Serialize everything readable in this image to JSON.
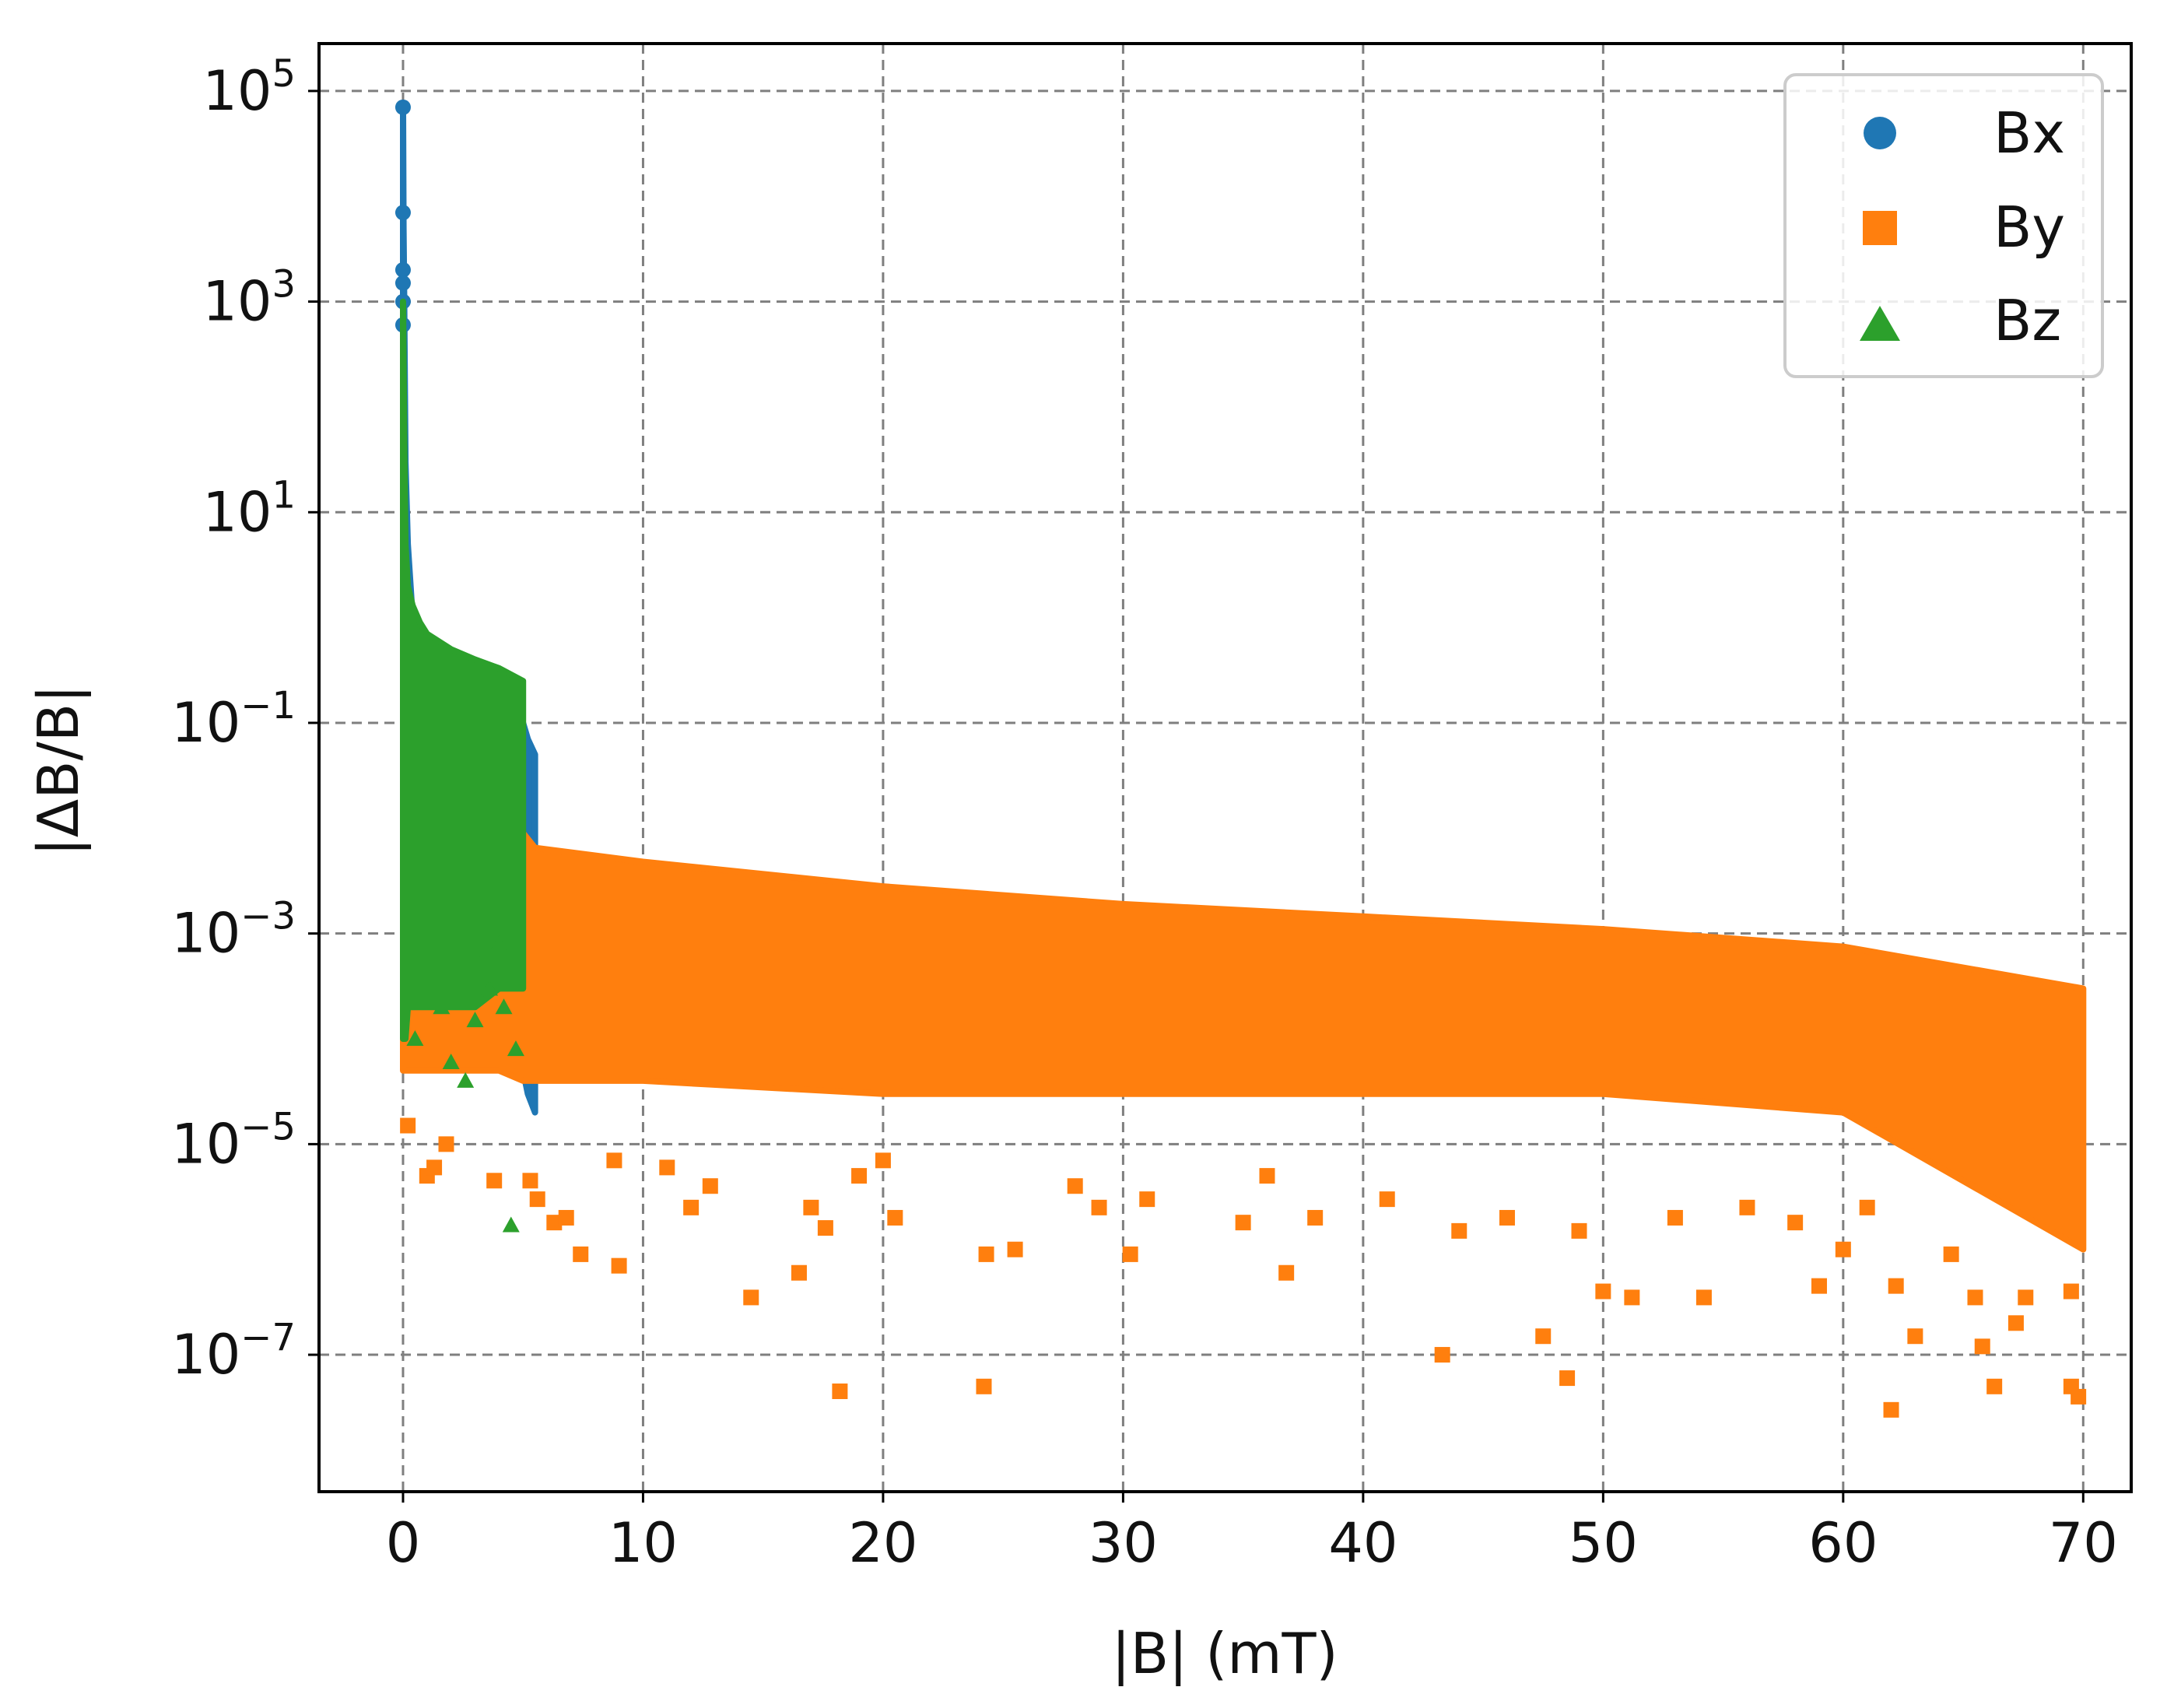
{
  "chart_data": {
    "type": "scatter",
    "title": "",
    "xlabel": "|B| (mT)",
    "ylabel": "|ΔB/B|",
    "xlim": [
      -3.5,
      72
    ],
    "ylim_exponent": [
      -8.3,
      5.45
    ],
    "y_scale": "log",
    "x_ticks": [
      0,
      10,
      20,
      30,
      40,
      50,
      60,
      70
    ],
    "x_tick_labels": [
      "0",
      "10",
      "20",
      "30",
      "40",
      "50",
      "60",
      "70"
    ],
    "y_ticks_exponent": [
      5,
      3,
      1,
      -1,
      -3,
      -5,
      -7
    ],
    "y_tick_labels": [
      {
        "base": "10",
        "exp": "5"
      },
      {
        "base": "10",
        "exp": "3"
      },
      {
        "base": "10",
        "exp": "1"
      },
      {
        "base": "10",
        "exp": "−1"
      },
      {
        "base": "10",
        "exp": "−3"
      },
      {
        "base": "10",
        "exp": "−5"
      },
      {
        "base": "10",
        "exp": "−7"
      }
    ],
    "grid": true,
    "grid_style": "dashed",
    "legend_position": "top-right",
    "series": [
      {
        "name": "Bx",
        "marker": "circle",
        "color": "#1f77b4",
        "envelope": {
          "x": [
            0,
            0.02,
            0.05,
            0.1,
            0.2,
            0.4,
            1,
            2,
            3,
            4,
            5,
            5.2,
            5.5
          ],
          "y_upper": [
            70000,
            5000,
            1000,
            30,
            5,
            1,
            0.5,
            0.3,
            0.2,
            0.15,
            0.1,
            0.07,
            0.05
          ],
          "y_lower": [
            0.0001,
            0.0001,
            0.0001,
            0.0001,
            0.0001,
            0.0001,
            0.0001,
            0.0001,
            0.0001,
            0.0001,
            5e-05,
            3e-05,
            2e-05
          ]
        },
        "points": [
          {
            "x": 0,
            "y": 70000
          },
          {
            "x": 0,
            "y": 7000
          },
          {
            "x": 0,
            "y": 2000
          },
          {
            "x": 0,
            "y": 1500
          },
          {
            "x": 0,
            "y": 1000
          },
          {
            "x": 0,
            "y": 600
          }
        ]
      },
      {
        "name": "By",
        "marker": "square",
        "color": "#ff7f0e",
        "envelope": {
          "x": [
            0,
            1,
            2,
            3,
            4,
            5,
            5.5,
            10,
            20,
            30,
            40,
            50,
            60,
            70
          ],
          "y_upper": [
            0.03,
            0.02,
            0.015,
            0.012,
            0.01,
            0.009,
            0.0065,
            0.0048,
            0.0028,
            0.0019,
            0.00145,
            0.0011,
            0.00075,
            0.0003
          ],
          "y_lower": [
            5e-05,
            5e-05,
            5e-05,
            5e-05,
            5e-05,
            4e-05,
            4e-05,
            4e-05,
            3e-05,
            3e-05,
            3e-05,
            3e-05,
            2e-05,
            1e-06
          ]
        },
        "points": [
          {
            "x": 0.2,
            "y": 1.5e-05
          },
          {
            "x": 1.0,
            "y": 5e-06
          },
          {
            "x": 1.3,
            "y": 6e-06
          },
          {
            "x": 1.8,
            "y": 1e-05
          },
          {
            "x": 3.8,
            "y": 4.5e-06
          },
          {
            "x": 5.3,
            "y": 4.5e-06
          },
          {
            "x": 5.6,
            "y": 3e-06
          },
          {
            "x": 6.3,
            "y": 1.8e-06
          },
          {
            "x": 6.8,
            "y": 2e-06
          },
          {
            "x": 7.4,
            "y": 9e-07
          },
          {
            "x": 8.8,
            "y": 7e-06
          },
          {
            "x": 9.0,
            "y": 7e-07
          },
          {
            "x": 11.0,
            "y": 6e-06
          },
          {
            "x": 12.0,
            "y": 2.5e-06
          },
          {
            "x": 12.8,
            "y": 4e-06
          },
          {
            "x": 14.5,
            "y": 3.5e-07
          },
          {
            "x": 16.5,
            "y": 6e-07
          },
          {
            "x": 17.0,
            "y": 2.5e-06
          },
          {
            "x": 17.6,
            "y": 1.6e-06
          },
          {
            "x": 18.2,
            "y": 4.5e-08
          },
          {
            "x": 19.0,
            "y": 5e-06
          },
          {
            "x": 20.0,
            "y": 7e-06
          },
          {
            "x": 20.5,
            "y": 2e-06
          },
          {
            "x": 24.2,
            "y": 5e-08
          },
          {
            "x": 24.3,
            "y": 9e-07
          },
          {
            "x": 25.5,
            "y": 1e-06
          },
          {
            "x": 28.0,
            "y": 4e-06
          },
          {
            "x": 29.0,
            "y": 2.5e-06
          },
          {
            "x": 30.3,
            "y": 9e-07
          },
          {
            "x": 31.0,
            "y": 3e-06
          },
          {
            "x": 35.0,
            "y": 1.8e-06
          },
          {
            "x": 36.0,
            "y": 5e-06
          },
          {
            "x": 36.8,
            "y": 6e-07
          },
          {
            "x": 38.0,
            "y": 2e-06
          },
          {
            "x": 41.0,
            "y": 3e-06
          },
          {
            "x": 43.3,
            "y": 1e-07
          },
          {
            "x": 44.0,
            "y": 1.5e-06
          },
          {
            "x": 46.0,
            "y": 2e-06
          },
          {
            "x": 47.5,
            "y": 1.5e-07
          },
          {
            "x": 48.5,
            "y": 6e-08
          },
          {
            "x": 49.0,
            "y": 1.5e-06
          },
          {
            "x": 50.0,
            "y": 4e-07
          },
          {
            "x": 51.2,
            "y": 3.5e-07
          },
          {
            "x": 53.0,
            "y": 2e-06
          },
          {
            "x": 54.2,
            "y": 3.5e-07
          },
          {
            "x": 56.0,
            "y": 2.5e-06
          },
          {
            "x": 58.0,
            "y": 1.8e-06
          },
          {
            "x": 59.0,
            "y": 4.5e-07
          },
          {
            "x": 60.0,
            "y": 1e-06
          },
          {
            "x": 61.0,
            "y": 2.5e-06
          },
          {
            "x": 62.0,
            "y": 3e-08
          },
          {
            "x": 62.2,
            "y": 4.5e-07
          },
          {
            "x": 63.0,
            "y": 1.5e-07
          },
          {
            "x": 64.5,
            "y": 9e-07
          },
          {
            "x": 65.5,
            "y": 3.5e-07
          },
          {
            "x": 65.8,
            "y": 1.2e-07
          },
          {
            "x": 66.3,
            "y": 5e-08
          },
          {
            "x": 67.2,
            "y": 2e-07
          },
          {
            "x": 67.6,
            "y": 3.5e-07
          },
          {
            "x": 69.5,
            "y": 5e-08
          },
          {
            "x": 69.8,
            "y": 4e-08
          },
          {
            "x": 69.5,
            "y": 4e-07
          }
        ]
      },
      {
        "name": "Bz",
        "marker": "triangle",
        "color": "#2ca02c",
        "envelope": {
          "x": [
            0,
            0.05,
            0.1,
            0.2,
            0.4,
            0.7,
            1,
            2,
            3,
            4,
            5
          ],
          "y_upper": [
            1000,
            50,
            5,
            2,
            1.3,
            0.9,
            0.7,
            0.5,
            0.4,
            0.33,
            0.25
          ],
          "y_lower": [
            0.0001,
            0.0001,
            0.0001,
            0.0002,
            0.0002,
            0.0002,
            0.0002,
            0.0002,
            0.0002,
            0.0003,
            0.0003
          ]
        },
        "points": [
          {
            "x": 0.5,
            "y": 0.0001
          },
          {
            "x": 1.2,
            "y": 0.0004
          },
          {
            "x": 1.6,
            "y": 0.0002
          },
          {
            "x": 2.0,
            "y": 6e-05
          },
          {
            "x": 2.4,
            "y": 0.0003
          },
          {
            "x": 2.6,
            "y": 4e-05
          },
          {
            "x": 3.0,
            "y": 0.00015
          },
          {
            "x": 3.2,
            "y": 0.0005
          },
          {
            "x": 3.6,
            "y": 0.0003
          },
          {
            "x": 4.0,
            "y": 0.0008
          },
          {
            "x": 4.2,
            "y": 0.0002
          },
          {
            "x": 4.5,
            "y": 1.7e-06
          },
          {
            "x": 4.7,
            "y": 8e-05
          }
        ]
      }
    ]
  }
}
